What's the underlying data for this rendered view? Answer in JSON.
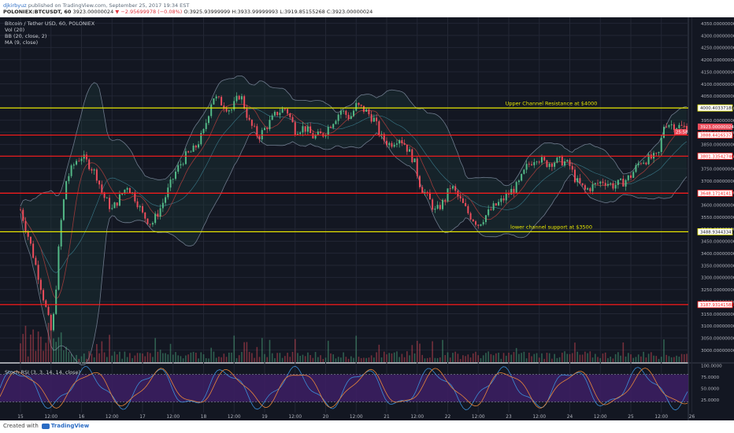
{
  "header": {
    "author": "djkirbyuz",
    "published": "published on TradingView.com, September 25, 2017 19:34 EST",
    "symbol": "POLONIEX:BTCUSDT, 60",
    "last": "3923.00000024",
    "change": "▼ −2.95699978 (−0.08%)",
    "o": "O:3925.93999999",
    "h": "H:3933.99999993",
    "l": "L:3919.85155268",
    "c": "C:3923.00000024"
  },
  "overlays": {
    "title": "Bitcoin / Tether USD, 60, POLONIEX",
    "vol": "Vol (20)",
    "bb": "BB (20, close, 2)",
    "ma": "MA (9, close)",
    "rsi": "Stoch RSI (3, 3, 14, 14, close)"
  },
  "footer": {
    "created": "Created with",
    "brand": "TradingView"
  },
  "colors": {
    "bg": "#131722",
    "grid": "#232734",
    "up": "#53b987",
    "down": "#eb4d5c",
    "yellow_line": "#e6e600",
    "red_line": "#ff1a1a",
    "bb": "#6e7a8c",
    "ma": "#9b3a3a",
    "rsi_fill": "#3d1e64",
    "k_line": "#3c8fd8",
    "d_line": "#e8863a"
  },
  "chart_data": {
    "type": "candlestick",
    "symbol": "BTCUSDT",
    "ylim": [
      2950,
      4375
    ],
    "price_ticks": [
      "4350.00000000",
      "4300.00000000",
      "4250.00000000",
      "4200.00000000",
      "4150.00000000",
      "4100.00000000",
      "4050.00000000",
      "4000.00000000",
      "3950.00000000",
      "3900.00000000",
      "3850.00000000",
      "3800.00000000",
      "3750.00000000",
      "3700.00000000",
      "3650.00000000",
      "3600.00000000",
      "3550.00000000",
      "3500.00000000",
      "3450.00000000",
      "3400.00000000",
      "3350.00000000",
      "3300.00000000",
      "3250.00000000",
      "3200.00000000",
      "3150.00000000",
      "3100.00000000",
      "3050.00000000",
      "3000.00000000"
    ],
    "x_ticks": [
      "15",
      "12:00",
      "16",
      "12:00",
      "17",
      "12:00",
      "18",
      "12:00",
      "19",
      "12:00",
      "20",
      "12:00",
      "21",
      "12:00",
      "22",
      "12:00",
      "23",
      "12:00",
      "24",
      "12:00",
      "25",
      "12:00",
      "26"
    ],
    "horizontal_levels": [
      {
        "price": 4000.40337188,
        "label": "4000.40337188",
        "color": "yellow"
      },
      {
        "price": 3888.44165371,
        "label": "3888.44165371",
        "color": "red"
      },
      {
        "price": 3801.33542746,
        "label": "3801.33542746",
        "color": "red"
      },
      {
        "price": 3648.17141417,
        "label": "3648.17141417",
        "color": "red"
      },
      {
        "price": 3488.93443341,
        "label": "3488.93443341",
        "color": "yellow"
      },
      {
        "price": 3187.93141588,
        "label": "3187.93141588",
        "color": "red"
      }
    ],
    "current_price_label": "3923.00000024",
    "countdown_label": "25:58",
    "annotations": [
      {
        "text": "Upper Channel Resistance at $4000",
        "price": 4000
      },
      {
        "text": "lower channel support at $3500",
        "price": 3488
      }
    ],
    "close_path": [
      [
        15.0,
        3580
      ],
      [
        15.15,
        3450
      ],
      [
        15.3,
        3300
      ],
      [
        15.5,
        3080
      ],
      [
        15.55,
        3150
      ],
      [
        15.65,
        3500
      ],
      [
        15.75,
        3700
      ],
      [
        15.9,
        3780
      ],
      [
        16.0,
        3800
      ],
      [
        16.15,
        3760
      ],
      [
        16.25,
        3720
      ],
      [
        16.35,
        3640
      ],
      [
        16.5,
        3580
      ],
      [
        16.6,
        3620
      ],
      [
        16.75,
        3680
      ],
      [
        16.9,
        3620
      ],
      [
        17.0,
        3560
      ],
      [
        17.15,
        3520
      ],
      [
        17.3,
        3590
      ],
      [
        17.45,
        3680
      ],
      [
        17.55,
        3740
      ],
      [
        17.7,
        3800
      ],
      [
        17.85,
        3830
      ],
      [
        18.0,
        3900
      ],
      [
        18.15,
        4050
      ],
      [
        18.3,
        4020
      ],
      [
        18.45,
        3990
      ],
      [
        18.6,
        4060
      ],
      [
        18.75,
        3940
      ],
      [
        18.9,
        3880
      ],
      [
        19.05,
        3930
      ],
      [
        19.2,
        3980
      ],
      [
        19.35,
        4000
      ],
      [
        19.5,
        3910
      ],
      [
        19.65,
        3920
      ],
      [
        19.8,
        3880
      ],
      [
        19.95,
        3890
      ],
      [
        20.1,
        3940
      ],
      [
        20.25,
        3990
      ],
      [
        20.4,
        3960
      ],
      [
        20.5,
        4010
      ],
      [
        20.65,
        3990
      ],
      [
        20.8,
        3950
      ],
      [
        20.9,
        3880
      ],
      [
        21.05,
        3850
      ],
      [
        21.2,
        3880
      ],
      [
        21.3,
        3850
      ],
      [
        21.45,
        3780
      ],
      [
        21.55,
        3680
      ],
      [
        21.7,
        3620
      ],
      [
        21.8,
        3570
      ],
      [
        21.95,
        3620
      ],
      [
        22.05,
        3680
      ],
      [
        22.2,
        3620
      ],
      [
        22.35,
        3560
      ],
      [
        22.5,
        3520
      ],
      [
        22.6,
        3550
      ],
      [
        22.75,
        3590
      ],
      [
        22.9,
        3620
      ],
      [
        23.05,
        3660
      ],
      [
        23.15,
        3680
      ],
      [
        23.3,
        3760
      ],
      [
        23.45,
        3800
      ],
      [
        23.6,
        3770
      ],
      [
        23.75,
        3780
      ],
      [
        23.9,
        3780
      ],
      [
        24.0,
        3760
      ],
      [
        24.1,
        3700
      ],
      [
        24.25,
        3660
      ],
      [
        24.4,
        3680
      ],
      [
        24.55,
        3700
      ],
      [
        24.7,
        3680
      ],
      [
        24.85,
        3690
      ],
      [
        25.0,
        3720
      ],
      [
        25.15,
        3780
      ],
      [
        25.3,
        3790
      ],
      [
        25.45,
        3800
      ],
      [
        25.55,
        3940
      ],
      [
        25.7,
        3930
      ],
      [
        25.85,
        3920
      ],
      [
        25.95,
        3923
      ]
    ],
    "panels": [
      {
        "name": "Volume (20)"
      },
      {
        "name": "Stoch RSI (3, 3, 14, 14, close)",
        "ylim": [
          0,
          100
        ],
        "ticks": [
          "100.0000",
          "75.0000",
          "50.0000",
          "25.0000"
        ],
        "overbought": 80,
        "oversold": 20
      }
    ]
  }
}
